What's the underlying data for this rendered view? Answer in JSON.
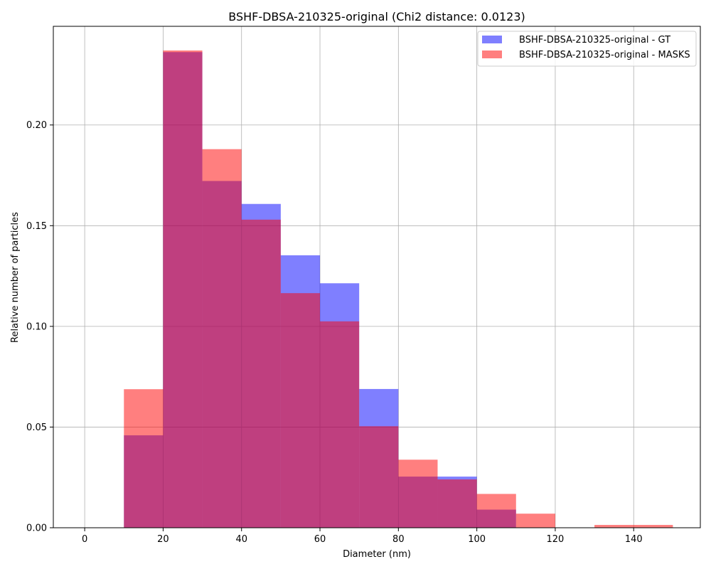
{
  "chart_data": {
    "type": "bar",
    "title": "BSHF-DBSA-210325-original (Chi2 distance: 0.0123)",
    "xlabel": "Diameter (nm)",
    "ylabel": "Relative number of particles",
    "bin_edges": [
      0,
      10,
      20,
      30,
      40,
      50,
      60,
      70,
      80,
      90,
      100,
      110,
      120,
      130,
      140,
      150
    ],
    "series": [
      {
        "name": "BSHF-DBSA-210325-original - GT",
        "color": "#0000ff",
        "values": [
          0,
          0.0459,
          0.2362,
          0.1722,
          0.1608,
          0.1353,
          0.1214,
          0.0689,
          0.0254,
          0.0254,
          0.009,
          0,
          0,
          0,
          0
        ]
      },
      {
        "name": "BSHF-DBSA-210325-original - MASKS",
        "color": "#ff0000",
        "values": [
          0,
          0.0688,
          0.237,
          0.188,
          0.153,
          0.1165,
          0.1025,
          0.0504,
          0.0338,
          0.024,
          0.0168,
          0.007,
          0,
          0.0014,
          0.0014
        ]
      }
    ],
    "xlim": [
      -8,
      157
    ],
    "ylim": [
      0,
      0.249
    ],
    "xticks": [
      0,
      20,
      40,
      60,
      80,
      100,
      120,
      140
    ],
    "yticks": [
      0.0,
      0.05,
      0.1,
      0.15,
      0.2
    ],
    "ytick_labels": [
      "0.00",
      "0.05",
      "0.10",
      "0.15",
      "0.20"
    ],
    "grid": true,
    "legend_position": "top-right"
  }
}
